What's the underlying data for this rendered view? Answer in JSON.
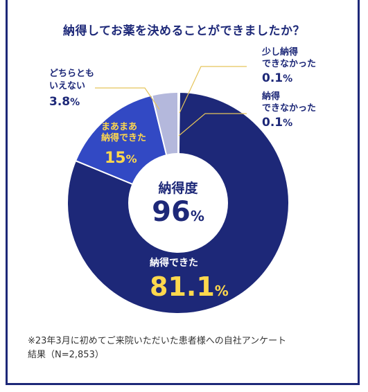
{
  "title": "納得してお薬を決めることができましたか？",
  "center": {
    "label": "納得度",
    "value": "96",
    "unit": "%"
  },
  "slices": [
    {
      "id": "satisfied",
      "label": "納得できた",
      "value_text": "81.1",
      "unit": "%"
    },
    {
      "id": "somewhat",
      "label_line1": "まあまあ",
      "label_line2": "納得できた",
      "value_text": "15",
      "unit": "%"
    },
    {
      "id": "neither",
      "label_line1": "どちらとも",
      "label_line2": "いえない",
      "value_text": "3.8",
      "unit": "%"
    },
    {
      "id": "little",
      "label_line1": "少し納得",
      "label_line2": "できなかった",
      "value_text": "0.1",
      "unit": "%"
    },
    {
      "id": "not",
      "label_line1": "納得",
      "label_line2": "できなかった",
      "value_text": "0.1",
      "unit": "%"
    }
  ],
  "footnote_line1": "※23年3月に初めてご来院いただいた患者様への自社アンケート",
  "footnote_line2": "結果（N=2,853）",
  "chart_data": {
    "type": "pie",
    "donut": true,
    "categories": [
      "納得できた",
      "まあまあ納得できた",
      "どちらともいえない",
      "少し納得できなかった",
      "納得できなかった"
    ],
    "values": [
      81.1,
      15,
      3.8,
      0.1,
      0.1
    ],
    "colors": [
      "#1d2878",
      "#3249c4",
      "#b4b8dc",
      "#1d2878",
      "#1d2878"
    ],
    "title": "納得してお薬を決めることができましたか？",
    "center_text": "納得度 96%"
  }
}
